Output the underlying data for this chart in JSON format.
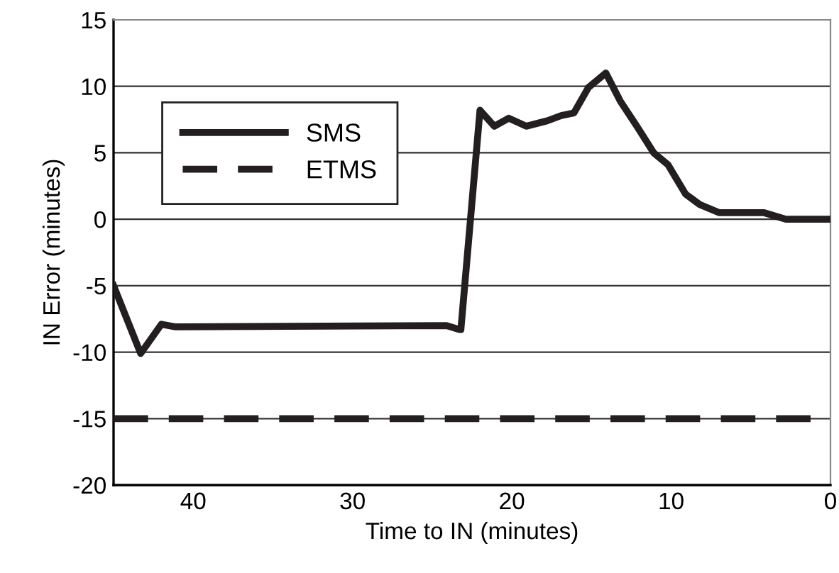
{
  "chart_data": {
    "type": "line",
    "xlabel": "Time to IN (minutes)",
    "ylabel": "IN Error (minutes)",
    "xlim": [
      45,
      0
    ],
    "xticks": [
      40,
      30,
      20,
      10,
      0
    ],
    "ylim": [
      -20,
      15
    ],
    "yticks": [
      -20,
      -15,
      -10,
      -5,
      0,
      5,
      10,
      15
    ],
    "grid": "y",
    "legend": "top left",
    "marker": "none",
    "series": [
      {
        "name": "SMS",
        "color": "#231f20",
        "line_style": "solid",
        "x": [
          45,
          44.1,
          43.3,
          42.0,
          41.1,
          24.1,
          23.3,
          23.2,
          22.0,
          21.1,
          20.2,
          19.1,
          17.8,
          16.9,
          16.1,
          15.2,
          14.1,
          13.2,
          12.1,
          11.1,
          10.2,
          9.1,
          8.2,
          7.0,
          5.2,
          4.2,
          2.8,
          0
        ],
        "values": [
          -5,
          -7.7,
          -10.1,
          -7.9,
          -8.1,
          -8,
          -8.3,
          -8.3,
          8.2,
          7.0,
          7.6,
          7.0,
          7.4,
          7.8,
          8.0,
          9.9,
          11.0,
          8.9,
          6.9,
          5.0,
          4.1,
          1.9,
          1.1,
          0.5,
          0.5,
          0.5,
          0,
          0
        ]
      },
      {
        "name": "ETMS",
        "color": "#231f20",
        "line_style": "dashed",
        "x": [
          45,
          0
        ],
        "values": [
          -15,
          -15
        ]
      }
    ]
  }
}
